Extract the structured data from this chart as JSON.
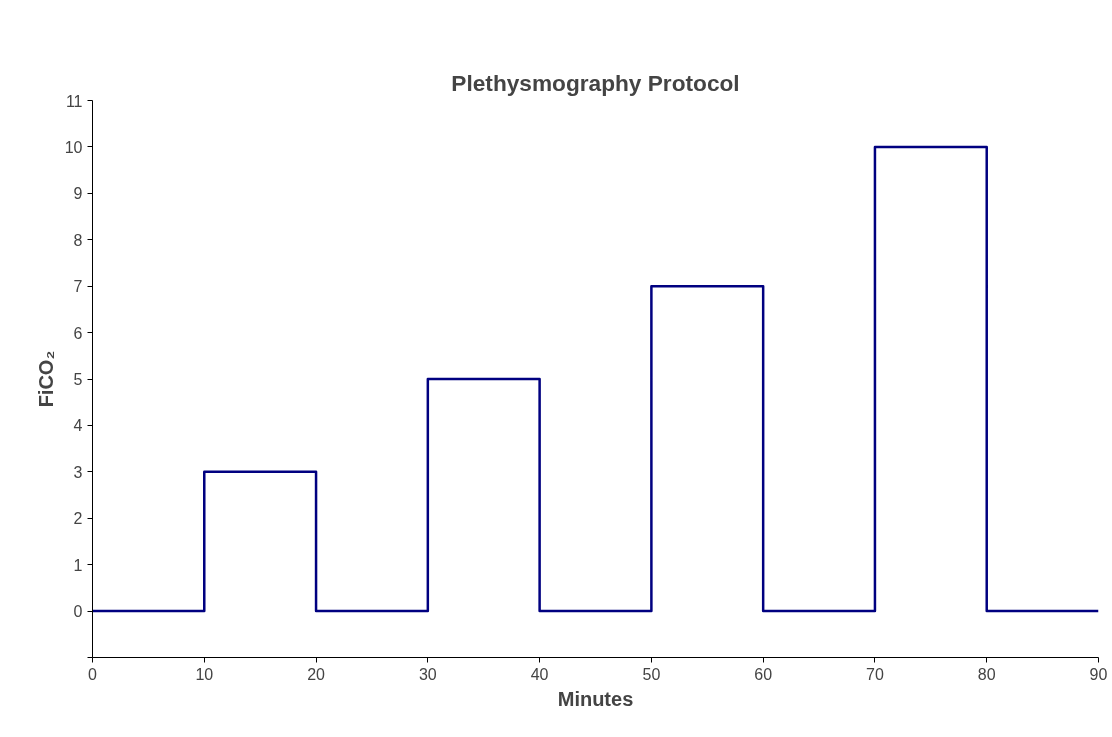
{
  "chart_data": {
    "type": "step",
    "title": "Plethysmography Protocol",
    "xlabel": "Minutes",
    "ylabel": "FiCO₂",
    "x": [
      0,
      10,
      20,
      30,
      40,
      50,
      60,
      70,
      80,
      90
    ],
    "series": [
      {
        "color": "#000080",
        "values": [
          0,
          3,
          0,
          5,
          0,
          7,
          0,
          10,
          0,
          0
        ]
      }
    ],
    "xlim": [
      0,
      90
    ],
    "ylim": [
      -1,
      11
    ],
    "xticks": [
      0,
      10,
      20,
      30,
      40,
      50,
      60,
      70,
      80,
      90
    ],
    "yticks": [
      {
        "value": -1,
        "label": null
      },
      0,
      1,
      2,
      3,
      4,
      5,
      6,
      7,
      8,
      9,
      10,
      11
    ],
    "line_style": "solid"
  }
}
